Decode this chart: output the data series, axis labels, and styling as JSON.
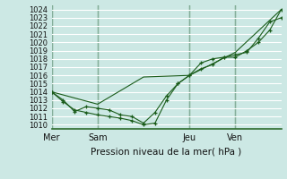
{
  "bg_color": "#cce8e4",
  "grid_color": "#b0d8d2",
  "line_color": "#1a5c1a",
  "title": "Pression niveau de la mer( hPa )",
  "ylim": [
    1009.5,
    1024.5
  ],
  "yticks": [
    1010,
    1011,
    1012,
    1013,
    1014,
    1015,
    1016,
    1017,
    1018,
    1019,
    1020,
    1021,
    1022,
    1023,
    1024
  ],
  "day_labels": [
    "Mer",
    "Sam",
    "Jeu",
    "Ven"
  ],
  "day_positions": [
    0,
    24,
    72,
    96
  ],
  "xlim_min": 0,
  "xlim_max": 120,
  "series1_x": [
    0,
    6,
    12,
    18,
    24,
    30,
    36,
    42,
    48,
    54,
    60,
    66,
    72,
    78,
    84,
    90,
    96,
    102,
    108,
    114,
    120
  ],
  "series1_y": [
    1014.0,
    1013.0,
    1011.6,
    1012.2,
    1012.0,
    1011.8,
    1011.2,
    1011.0,
    1010.2,
    1011.5,
    1013.5,
    1015.0,
    1016.0,
    1016.8,
    1017.3,
    1018.2,
    1018.5,
    1018.8,
    1020.5,
    1022.5,
    1023.0
  ],
  "series2_x": [
    0,
    6,
    12,
    18,
    24,
    30,
    36,
    42,
    48,
    54,
    60,
    66,
    72,
    78,
    84,
    90,
    96,
    102,
    108,
    114,
    120
  ],
  "series2_y": [
    1014.0,
    1012.8,
    1011.8,
    1011.5,
    1011.2,
    1011.0,
    1010.8,
    1010.5,
    1010.0,
    1010.2,
    1013.0,
    1015.0,
    1016.0,
    1017.5,
    1018.0,
    1018.2,
    1018.2,
    1019.0,
    1020.0,
    1021.5,
    1024.0
  ],
  "series3_x": [
    0,
    24,
    48,
    72,
    96,
    120
  ],
  "series3_y": [
    1014.0,
    1012.5,
    1015.8,
    1016.0,
    1018.8,
    1024.0
  ]
}
